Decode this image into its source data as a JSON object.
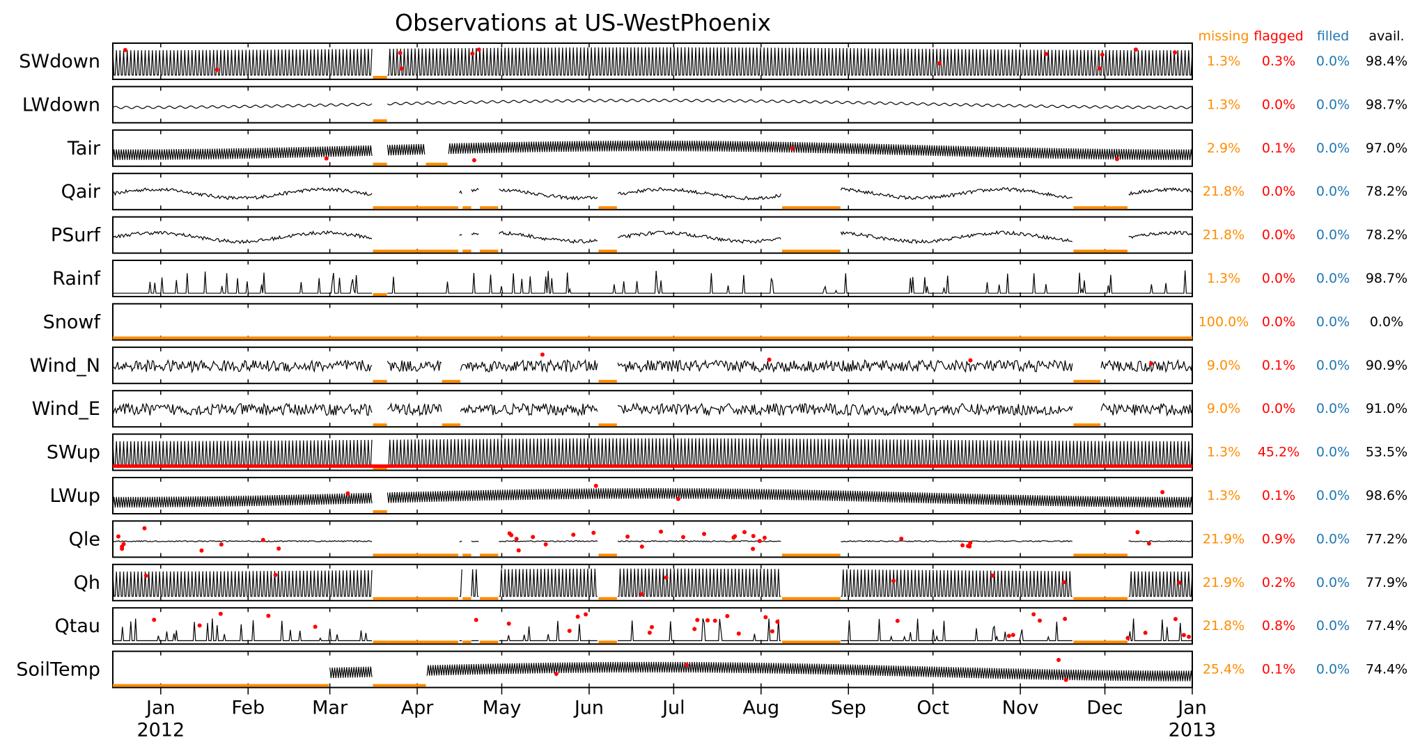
{
  "chart_data": {
    "type": "line",
    "title": "Observations at US-WestPhoenix",
    "x_range": [
      "2011-12-15",
      "2013-01-01"
    ],
    "x_ticks": [
      "Jan",
      "Feb",
      "Mar",
      "Apr",
      "May",
      "Jun",
      "Jul",
      "Aug",
      "Sep",
      "Oct",
      "Nov",
      "Dec",
      "Jan"
    ],
    "x_year_labels": [
      "2012",
      "2013"
    ],
    "stat_headers": {
      "missing": "missing",
      "flagged": "flagged",
      "filled": "filled",
      "avail": "avail."
    },
    "colors": {
      "missing": "#ff8c00",
      "flagged": "#ff0000",
      "filled": "#1f77b4",
      "avail": "#000000",
      "series": "#000000"
    },
    "series": [
      {
        "name": "SWdown",
        "missing": "1.3%",
        "flagged": "0.3%",
        "filled": "0.0%",
        "avail": "98.4%",
        "kind": "diurnal"
      },
      {
        "name": "LWdown",
        "missing": "1.3%",
        "flagged": "0.0%",
        "filled": "0.0%",
        "avail": "98.7%",
        "kind": "smooth"
      },
      {
        "name": "Tair",
        "missing": "2.9%",
        "flagged": "0.1%",
        "filled": "0.0%",
        "avail": "97.0%",
        "kind": "band"
      },
      {
        "name": "Qair",
        "missing": "21.8%",
        "flagged": "0.0%",
        "filled": "0.0%",
        "avail": "78.2%",
        "kind": "noisy"
      },
      {
        "name": "PSurf",
        "missing": "21.8%",
        "flagged": "0.0%",
        "filled": "0.0%",
        "avail": "78.2%",
        "kind": "noisy"
      },
      {
        "name": "Rainf",
        "missing": "1.3%",
        "flagged": "0.0%",
        "filled": "0.0%",
        "avail": "98.7%",
        "kind": "spikes"
      },
      {
        "name": "Snowf",
        "missing": "100.0%",
        "flagged": "0.0%",
        "filled": "0.0%",
        "avail": "0.0%",
        "kind": "none"
      },
      {
        "name": "Wind_N",
        "missing": "9.0%",
        "flagged": "0.1%",
        "filled": "0.0%",
        "avail": "90.9%",
        "kind": "wind"
      },
      {
        "name": "Wind_E",
        "missing": "9.0%",
        "flagged": "0.0%",
        "filled": "0.0%",
        "avail": "91.0%",
        "kind": "wind"
      },
      {
        "name": "SWup",
        "missing": "1.3%",
        "flagged": "45.2%",
        "filled": "0.0%",
        "avail": "53.5%",
        "kind": "diurnal"
      },
      {
        "name": "LWup",
        "missing": "1.3%",
        "flagged": "0.1%",
        "filled": "0.0%",
        "avail": "98.6%",
        "kind": "band"
      },
      {
        "name": "Qle",
        "missing": "21.9%",
        "flagged": "0.9%",
        "filled": "0.0%",
        "avail": "77.2%",
        "kind": "flat"
      },
      {
        "name": "Qh",
        "missing": "21.9%",
        "flagged": "0.2%",
        "filled": "0.0%",
        "avail": "77.9%",
        "kind": "diurnal"
      },
      {
        "name": "Qtau",
        "missing": "21.8%",
        "flagged": "0.8%",
        "filled": "0.0%",
        "avail": "77.4%",
        "kind": "spikes"
      },
      {
        "name": "SoilTemp",
        "missing": "25.4%",
        "flagged": "0.1%",
        "filled": "0.0%",
        "avail": "74.4%",
        "kind": "band"
      }
    ]
  }
}
